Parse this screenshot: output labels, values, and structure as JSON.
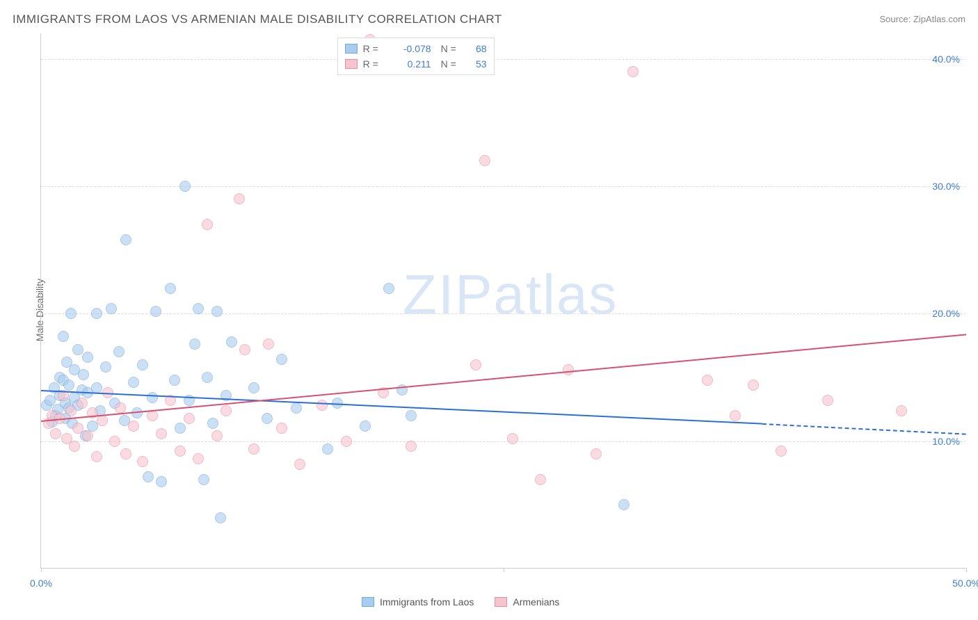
{
  "title": "IMMIGRANTS FROM LAOS VS ARMENIAN MALE DISABILITY CORRELATION CHART",
  "source_label": "Source: ",
  "source_name": "ZipAtlas.com",
  "y_axis_label": "Male Disability",
  "watermark_a": "ZIP",
  "watermark_b": "atlas",
  "chart": {
    "type": "scatter",
    "xlim": [
      0,
      50
    ],
    "ylim": [
      0,
      42
    ],
    "xticks": [
      0,
      25,
      50
    ],
    "xtick_labels": [
      "0.0%",
      "",
      "50.0%"
    ],
    "yticks": [
      10,
      20,
      30,
      40
    ],
    "ytick_labels": [
      "10.0%",
      "20.0%",
      "30.0%",
      "40.0%"
    ],
    "background_color": "#ffffff",
    "grid_color": "#dddddd",
    "axis_color": "#cccccc",
    "tick_label_color": "#3b7dd8",
    "marker_radius": 8,
    "marker_opacity": 0.6,
    "series": [
      {
        "name": "Immigrants from Laos",
        "fill_color": "#a9cdee",
        "stroke_color": "#6fa8dc",
        "trend_color": "#2a6fd6",
        "trend": {
          "x1": 0,
          "y1": 14.0,
          "x2": 39,
          "y2": 11.4,
          "dash_x1": 39,
          "dash_x2": 50,
          "dash_y1": 11.4,
          "dash_y2": 10.6
        },
        "R_label": "R =",
        "R_value": "-0.078",
        "N_label": "N =",
        "N_value": "68",
        "points": [
          [
            0.3,
            12.8
          ],
          [
            0.5,
            13.2
          ],
          [
            0.6,
            11.5
          ],
          [
            0.7,
            14.2
          ],
          [
            0.8,
            12.0
          ],
          [
            0.9,
            12.5
          ],
          [
            1.0,
            15.0
          ],
          [
            1.0,
            13.6
          ],
          [
            1.2,
            18.2
          ],
          [
            1.2,
            14.8
          ],
          [
            1.3,
            11.8
          ],
          [
            1.3,
            13.0
          ],
          [
            1.4,
            16.2
          ],
          [
            1.5,
            12.6
          ],
          [
            1.5,
            14.4
          ],
          [
            1.6,
            20.0
          ],
          [
            1.7,
            11.4
          ],
          [
            1.8,
            15.6
          ],
          [
            1.8,
            13.4
          ],
          [
            2.0,
            17.2
          ],
          [
            2.0,
            12.8
          ],
          [
            2.2,
            14.0
          ],
          [
            2.3,
            15.2
          ],
          [
            2.4,
            10.4
          ],
          [
            2.5,
            13.8
          ],
          [
            2.5,
            16.6
          ],
          [
            2.8,
            11.2
          ],
          [
            3.0,
            20.0
          ],
          [
            3.0,
            14.2
          ],
          [
            3.2,
            12.4
          ],
          [
            3.5,
            15.8
          ],
          [
            3.8,
            20.4
          ],
          [
            4.0,
            13.0
          ],
          [
            4.2,
            17.0
          ],
          [
            4.5,
            11.6
          ],
          [
            4.6,
            25.8
          ],
          [
            5.0,
            14.6
          ],
          [
            5.2,
            12.2
          ],
          [
            5.5,
            16.0
          ],
          [
            5.8,
            7.2
          ],
          [
            6.0,
            13.4
          ],
          [
            6.2,
            20.2
          ],
          [
            6.5,
            6.8
          ],
          [
            7.0,
            22.0
          ],
          [
            7.2,
            14.8
          ],
          [
            7.5,
            11.0
          ],
          [
            7.8,
            30.0
          ],
          [
            8.0,
            13.2
          ],
          [
            8.3,
            17.6
          ],
          [
            8.5,
            20.4
          ],
          [
            8.8,
            7.0
          ],
          [
            9.0,
            15.0
          ],
          [
            9.3,
            11.4
          ],
          [
            9.5,
            20.2
          ],
          [
            9.7,
            4.0
          ],
          [
            10.0,
            13.6
          ],
          [
            10.3,
            17.8
          ],
          [
            11.5,
            14.2
          ],
          [
            12.2,
            11.8
          ],
          [
            13.0,
            16.4
          ],
          [
            13.8,
            12.6
          ],
          [
            15.5,
            9.4
          ],
          [
            16.0,
            13.0
          ],
          [
            17.5,
            11.2
          ],
          [
            18.8,
            22.0
          ],
          [
            19.5,
            14.0
          ],
          [
            31.5,
            5.0
          ],
          [
            20.0,
            12.0
          ]
        ]
      },
      {
        "name": "Armenians",
        "fill_color": "#f6c4ce",
        "stroke_color": "#e88ca0",
        "trend_color": "#d94f70",
        "trend": {
          "x1": 0,
          "y1": 11.6,
          "x2": 50,
          "y2": 18.4,
          "dash_x1": 50,
          "dash_x2": 50,
          "dash_y1": 18.4,
          "dash_y2": 18.4
        },
        "R_label": "R =",
        "R_value": "0.211",
        "N_label": "N =",
        "N_value": "53",
        "points": [
          [
            0.4,
            11.4
          ],
          [
            0.6,
            12.0
          ],
          [
            0.8,
            10.6
          ],
          [
            1.0,
            11.8
          ],
          [
            1.2,
            13.6
          ],
          [
            1.4,
            10.2
          ],
          [
            1.6,
            12.4
          ],
          [
            1.8,
            9.6
          ],
          [
            2.0,
            11.0
          ],
          [
            2.2,
            13.0
          ],
          [
            2.5,
            10.4
          ],
          [
            2.8,
            12.2
          ],
          [
            3.0,
            8.8
          ],
          [
            3.3,
            11.6
          ],
          [
            3.6,
            13.8
          ],
          [
            4.0,
            10.0
          ],
          [
            4.3,
            12.6
          ],
          [
            4.6,
            9.0
          ],
          [
            5.0,
            11.2
          ],
          [
            5.5,
            8.4
          ],
          [
            6.0,
            12.0
          ],
          [
            6.5,
            10.6
          ],
          [
            7.0,
            13.2
          ],
          [
            7.5,
            9.2
          ],
          [
            8.0,
            11.8
          ],
          [
            8.5,
            8.6
          ],
          [
            9.0,
            27.0
          ],
          [
            9.5,
            10.4
          ],
          [
            10.0,
            12.4
          ],
          [
            10.7,
            29.0
          ],
          [
            11.0,
            17.2
          ],
          [
            11.5,
            9.4
          ],
          [
            12.3,
            17.6
          ],
          [
            13.0,
            11.0
          ],
          [
            14.0,
            8.2
          ],
          [
            15.2,
            12.8
          ],
          [
            16.5,
            10.0
          ],
          [
            17.8,
            41.5
          ],
          [
            18.5,
            13.8
          ],
          [
            20.0,
            9.6
          ],
          [
            23.5,
            16.0
          ],
          [
            24.0,
            32.0
          ],
          [
            25.5,
            10.2
          ],
          [
            27.0,
            7.0
          ],
          [
            28.5,
            15.6
          ],
          [
            30.0,
            9.0
          ],
          [
            32.0,
            39.0
          ],
          [
            36.0,
            14.8
          ],
          [
            37.5,
            12.0
          ],
          [
            38.5,
            14.4
          ],
          [
            40.0,
            9.2
          ],
          [
            42.5,
            13.2
          ],
          [
            46.5,
            12.4
          ]
        ]
      }
    ]
  },
  "legend_bottom": [
    {
      "label": "Immigrants from Laos",
      "fill": "#a9cdee",
      "stroke": "#6fa8dc"
    },
    {
      "label": "Armenians",
      "fill": "#f6c4ce",
      "stroke": "#e88ca0"
    }
  ]
}
